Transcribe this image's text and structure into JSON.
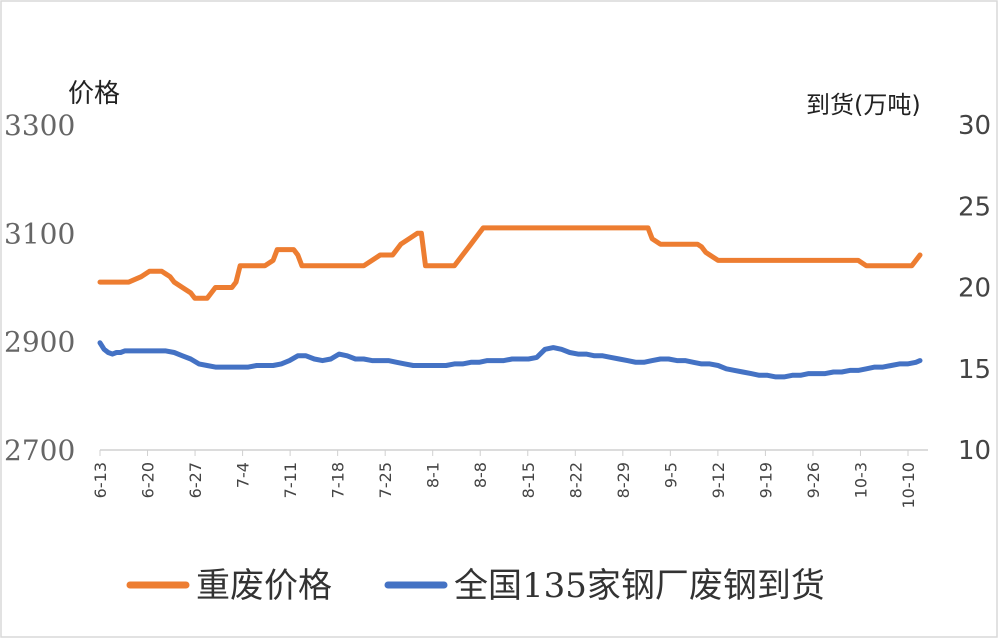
{
  "chart_data": {
    "type": "line",
    "ylabel_left": "价格",
    "ylabel_right": "到货(万吨)",
    "ylim_left": [
      2700,
      3300
    ],
    "yticks_left": [
      "3300",
      "3100",
      "2900",
      "2700"
    ],
    "ylim_right": [
      10,
      30
    ],
    "yticks_right": [
      "30",
      "25",
      "20",
      "15",
      "10"
    ],
    "xticks": [
      "6-13",
      "6-20",
      "6-27",
      "7-4",
      "7-11",
      "7-18",
      "7-25",
      "8-1",
      "8-8",
      "8-15",
      "8-22",
      "8-29",
      "9-5",
      "9-12",
      "9-19",
      "9-26",
      "10-3",
      "10-10"
    ],
    "legend_position": "bottom",
    "series": [
      {
        "name": "重废价格",
        "axis": "left",
        "color": "#ED7D31",
        "x": [
          0,
          2,
          6,
          7,
          10,
          12,
          14,
          15,
          16,
          17,
          18,
          20,
          22,
          23,
          26,
          27,
          28,
          30,
          32,
          33,
          34,
          35,
          36,
          40,
          42,
          43,
          44,
          45,
          46,
          47,
          48,
          49,
          50,
          51,
          52,
          53,
          54,
          55,
          56,
          57,
          58,
          59,
          60,
          62,
          64,
          68,
          70,
          71,
          72,
          73,
          75,
          77,
          78,
          79,
          82,
          84,
          86,
          88,
          90,
          93,
          96,
          97,
          98,
          100,
          102,
          105,
          108,
          109,
          110,
          112,
          114,
          115,
          116,
          118,
          119,
          120,
          121,
          122,
          124,
          126,
          128,
          130,
          133,
          134,
          136,
          138,
          140,
          141,
          142,
          143,
          145,
          146,
          147,
          148,
          150,
          152,
          155,
          158,
          160,
          163,
          166,
          168,
          170,
          171,
          173,
          176,
          179,
          181,
          184,
          186,
          188,
          190,
          193,
          195,
          197,
          199
        ],
        "values": [
          3010,
          3010,
          3010,
          3010,
          3020,
          3030,
          3030,
          3030,
          3025,
          3020,
          3010,
          3000,
          2990,
          2980,
          2980,
          2990,
          3000,
          3000,
          3000,
          3010,
          3040,
          3040,
          3040,
          3040,
          3050,
          3070,
          3070,
          3070,
          3070,
          3070,
          3060,
          3040,
          3040,
          3040,
          3040,
          3040,
          3040,
          3040,
          3040,
          3040,
          3040,
          3040,
          3040,
          3040,
          3040,
          3060,
          3060,
          3060,
          3070,
          3080,
          3090,
          3100,
          3100,
          3040,
          3040,
          3040,
          3040,
          3060,
          3080,
          3110,
          3110,
          3110,
          3110,
          3110,
          3110,
          3110,
          3110,
          3110,
          3110,
          3110,
          3110,
          3110,
          3110,
          3110,
          3110,
          3110,
          3110,
          3110,
          3110,
          3110,
          3110,
          3110,
          3110,
          3090,
          3080,
          3080,
          3080,
          3080,
          3080,
          3080,
          3080,
          3075,
          3065,
          3060,
          3050,
          3050,
          3050,
          3050,
          3050,
          3050,
          3050,
          3050,
          3050,
          3050,
          3050,
          3050,
          3050,
          3050,
          3050,
          3040,
          3040,
          3040,
          3040,
          3040,
          3040,
          3060
        ]
      },
      {
        "name": "全国135家钢厂废钢到货",
        "axis": "right",
        "color": "#4472C4",
        "x": [
          0,
          1,
          2,
          3,
          4,
          5,
          6,
          8,
          10,
          11,
          12,
          14,
          16,
          18,
          20,
          22,
          24,
          26,
          28,
          30,
          32,
          34,
          36,
          38,
          40,
          42,
          44,
          46,
          48,
          50,
          52,
          54,
          56,
          58,
          60,
          62,
          64,
          66,
          68,
          70,
          72,
          74,
          76,
          78,
          80,
          82,
          84,
          86,
          88,
          90,
          92,
          94,
          96,
          98,
          100,
          102,
          104,
          106,
          108,
          110,
          112,
          114,
          116,
          118,
          120,
          122,
          124,
          126,
          128,
          130,
          132,
          134,
          136,
          138,
          140,
          142,
          144,
          146,
          148,
          150,
          152,
          154,
          156,
          158,
          160,
          162,
          164,
          166,
          168,
          170,
          172,
          174,
          176,
          178,
          180,
          182,
          184,
          186,
          188,
          190,
          192,
          194,
          196,
          198,
          199
        ],
        "values": [
          16.6,
          16.2,
          16.0,
          15.9,
          16.0,
          16.0,
          16.1,
          16.1,
          16.1,
          16.1,
          16.1,
          16.1,
          16.1,
          16.0,
          15.8,
          15.6,
          15.3,
          15.2,
          15.1,
          15.1,
          15.1,
          15.1,
          15.1,
          15.2,
          15.2,
          15.2,
          15.3,
          15.5,
          15.8,
          15.8,
          15.6,
          15.5,
          15.6,
          15.9,
          15.8,
          15.6,
          15.6,
          15.5,
          15.5,
          15.5,
          15.4,
          15.3,
          15.2,
          15.2,
          15.2,
          15.2,
          15.2,
          15.3,
          15.3,
          15.4,
          15.4,
          15.5,
          15.5,
          15.5,
          15.6,
          15.6,
          15.6,
          15.7,
          16.2,
          16.3,
          16.2,
          16.0,
          15.9,
          15.9,
          15.8,
          15.8,
          15.7,
          15.6,
          15.5,
          15.4,
          15.4,
          15.5,
          15.6,
          15.6,
          15.5,
          15.5,
          15.4,
          15.3,
          15.3,
          15.2,
          15.0,
          14.9,
          14.8,
          14.7,
          14.6,
          14.6,
          14.5,
          14.5,
          14.6,
          14.6,
          14.7,
          14.7,
          14.7,
          14.8,
          14.8,
          14.9,
          14.9,
          15.0,
          15.1,
          15.1,
          15.2,
          15.3,
          15.3,
          15.4,
          15.5
        ]
      }
    ]
  },
  "legend": {
    "orange_label": "重废价格",
    "blue_label": "全国135家钢厂废钢到货"
  }
}
